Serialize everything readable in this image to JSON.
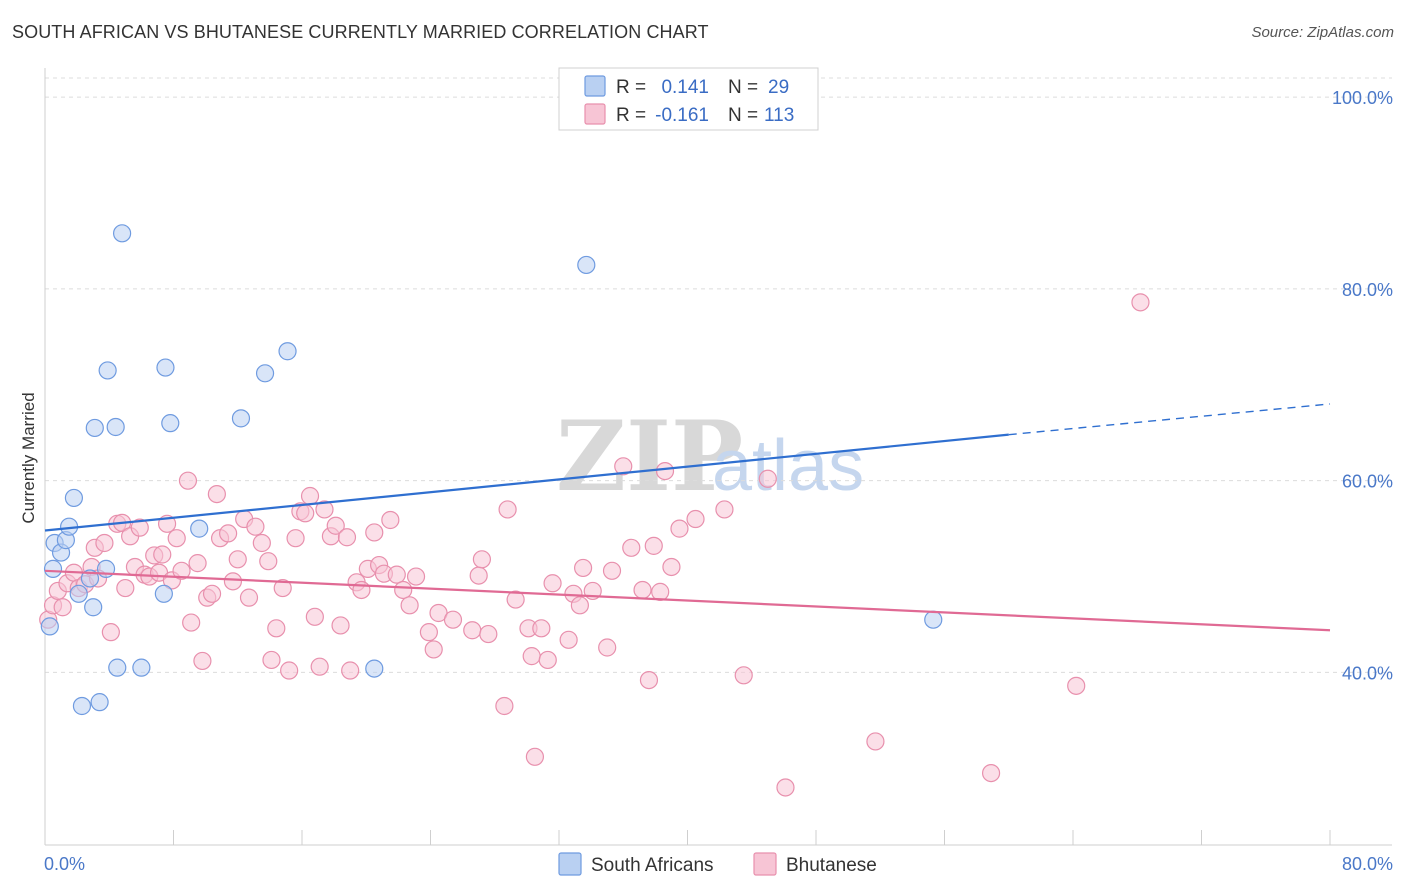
{
  "header": {
    "title": "SOUTH AFRICAN VS BHUTANESE CURRENTLY MARRIED CORRELATION CHART",
    "source": "Source: ZipAtlas.com"
  },
  "watermark": {
    "zip": "ZIP",
    "atlas": "atlas"
  },
  "colors": {
    "blue_fill": "#b9d0f2",
    "blue_stroke": "#6f9be0",
    "blue_line": "#2f6fd0",
    "pink_fill": "#f7c5d5",
    "pink_stroke": "#e890ad",
    "pink_line": "#e06a94",
    "grid": "#dcdcdc",
    "axis_text": "#4a78c8"
  },
  "legend": {
    "rows": [
      {
        "r_label": "R =",
        "r_value": "0.141",
        "n_label": "N =",
        "n_value": "29"
      },
      {
        "r_label": "R =",
        "r_value": "-0.161",
        "n_label": "N =",
        "n_value": "113"
      }
    ]
  },
  "bottom_legend": {
    "series_a": "South Africans",
    "series_b": "Bhutanese"
  },
  "chart_data": {
    "type": "scatter",
    "title": "SOUTH AFRICAN VS BHUTANESE CURRENTLY MARRIED CORRELATION CHART",
    "xlabel": "",
    "ylabel": "Currently Married",
    "xlim": [
      0,
      80
    ],
    "ylim": [
      22,
      102
    ],
    "x_tick_labels": [
      {
        "value": 0,
        "label": "0.0%"
      },
      {
        "value": 80,
        "label": "80.0%"
      }
    ],
    "y_tick_labels": [
      {
        "value": 100,
        "label": "100.0%"
      },
      {
        "value": 80,
        "label": "80.0%"
      },
      {
        "value": 60,
        "label": "60.0%"
      },
      {
        "value": 40,
        "label": "40.0%"
      }
    ],
    "y_grid": [
      100,
      80,
      60,
      40
    ],
    "x_minor_ticks": [
      8,
      16,
      24,
      32,
      40,
      48,
      56,
      64,
      72,
      80
    ],
    "series": [
      {
        "name": "South Africans",
        "r": 0.141,
        "n": 29,
        "trend": {
          "x0": 0,
          "y0": 54.8,
          "x1": 60,
          "y1": 64.8,
          "dash_x1": 80,
          "dash_y1": 68.0
        },
        "points": [
          [
            0.3,
            44.8
          ],
          [
            0.5,
            50.8
          ],
          [
            0.6,
            53.5
          ],
          [
            1.0,
            52.5
          ],
          [
            1.3,
            53.8
          ],
          [
            1.5,
            55.2
          ],
          [
            1.8,
            58.2
          ],
          [
            2.1,
            48.2
          ],
          [
            2.3,
            36.5
          ],
          [
            2.8,
            49.8
          ],
          [
            3.0,
            46.8
          ],
          [
            3.1,
            65.5
          ],
          [
            3.4,
            36.9
          ],
          [
            3.8,
            50.8
          ],
          [
            3.9,
            71.5
          ],
          [
            4.4,
            65.6
          ],
          [
            4.5,
            40.5
          ],
          [
            4.8,
            85.8
          ],
          [
            6.0,
            40.5
          ],
          [
            7.4,
            48.2
          ],
          [
            7.5,
            71.8
          ],
          [
            7.8,
            66.0
          ],
          [
            9.6,
            55.0
          ],
          [
            12.2,
            66.5
          ],
          [
            13.7,
            71.2
          ],
          [
            15.1,
            73.5
          ],
          [
            20.5,
            40.4
          ],
          [
            33.7,
            82.5
          ],
          [
            55.3,
            45.5
          ]
        ]
      },
      {
        "name": "Bhutanese",
        "r": -0.161,
        "n": 113,
        "trend": {
          "x0": 0,
          "y0": 50.6,
          "x1": 80,
          "y1": 44.4
        },
        "points": [
          [
            0.2,
            45.5
          ],
          [
            0.5,
            47.0
          ],
          [
            0.8,
            48.5
          ],
          [
            1.1,
            46.8
          ],
          [
            1.4,
            49.3
          ],
          [
            1.8,
            50.4
          ],
          [
            2.1,
            48.8
          ],
          [
            2.5,
            49.2
          ],
          [
            2.9,
            51.0
          ],
          [
            3.1,
            53.0
          ],
          [
            3.3,
            49.8
          ],
          [
            3.7,
            53.5
          ],
          [
            4.1,
            44.2
          ],
          [
            4.5,
            55.5
          ],
          [
            4.8,
            55.6
          ],
          [
            5.0,
            48.8
          ],
          [
            5.3,
            54.2
          ],
          [
            5.6,
            51.0
          ],
          [
            5.9,
            55.1
          ],
          [
            6.2,
            50.2
          ],
          [
            6.5,
            50.0
          ],
          [
            6.8,
            52.2
          ],
          [
            7.1,
            50.4
          ],
          [
            7.3,
            52.3
          ],
          [
            7.6,
            55.5
          ],
          [
            7.9,
            49.6
          ],
          [
            8.2,
            54.0
          ],
          [
            8.5,
            50.6
          ],
          [
            8.9,
            60.0
          ],
          [
            9.1,
            45.2
          ],
          [
            9.5,
            51.4
          ],
          [
            9.8,
            41.2
          ],
          [
            10.1,
            47.8
          ],
          [
            10.4,
            48.2
          ],
          [
            10.7,
            58.6
          ],
          [
            10.9,
            54.0
          ],
          [
            11.4,
            54.5
          ],
          [
            11.7,
            49.5
          ],
          [
            12.0,
            51.8
          ],
          [
            12.4,
            56.0
          ],
          [
            12.7,
            47.8
          ],
          [
            13.1,
            55.2
          ],
          [
            13.5,
            53.5
          ],
          [
            13.9,
            51.6
          ],
          [
            14.1,
            41.3
          ],
          [
            14.4,
            44.6
          ],
          [
            14.8,
            48.8
          ],
          [
            15.2,
            40.2
          ],
          [
            15.6,
            54.0
          ],
          [
            15.9,
            56.8
          ],
          [
            16.2,
            56.6
          ],
          [
            16.5,
            58.4
          ],
          [
            16.8,
            45.8
          ],
          [
            17.1,
            40.6
          ],
          [
            17.4,
            57.0
          ],
          [
            17.8,
            54.2
          ],
          [
            18.1,
            55.3
          ],
          [
            18.4,
            44.9
          ],
          [
            18.8,
            54.1
          ],
          [
            19.0,
            40.2
          ],
          [
            19.4,
            49.4
          ],
          [
            19.7,
            48.6
          ],
          [
            20.1,
            50.8
          ],
          [
            20.5,
            54.6
          ],
          [
            20.8,
            51.2
          ],
          [
            21.1,
            50.3
          ],
          [
            21.5,
            55.9
          ],
          [
            21.9,
            50.2
          ],
          [
            22.3,
            48.6
          ],
          [
            22.7,
            47.0
          ],
          [
            23.1,
            50.0
          ],
          [
            23.9,
            44.2
          ],
          [
            24.2,
            42.4
          ],
          [
            24.5,
            46.2
          ],
          [
            25.4,
            45.5
          ],
          [
            26.6,
            44.4
          ],
          [
            27.0,
            50.1
          ],
          [
            27.2,
            51.8
          ],
          [
            27.6,
            44.0
          ],
          [
            28.6,
            36.5
          ],
          [
            28.8,
            57.0
          ],
          [
            29.3,
            47.6
          ],
          [
            30.1,
            44.6
          ],
          [
            30.3,
            41.7
          ],
          [
            30.5,
            31.2
          ],
          [
            30.9,
            44.6
          ],
          [
            31.3,
            41.3
          ],
          [
            31.6,
            49.3
          ],
          [
            32.6,
            43.4
          ],
          [
            32.9,
            48.2
          ],
          [
            33.3,
            47.0
          ],
          [
            33.5,
            50.9
          ],
          [
            34.1,
            48.5
          ],
          [
            35.0,
            42.6
          ],
          [
            35.3,
            50.6
          ],
          [
            36.0,
            61.5
          ],
          [
            36.5,
            53.0
          ],
          [
            37.2,
            48.6
          ],
          [
            37.6,
            39.2
          ],
          [
            37.9,
            53.2
          ],
          [
            38.3,
            48.4
          ],
          [
            38.6,
            61.0
          ],
          [
            39.0,
            51.0
          ],
          [
            39.5,
            55.0
          ],
          [
            40.5,
            56.0
          ],
          [
            42.3,
            57.0
          ],
          [
            43.5,
            39.7
          ],
          [
            45.0,
            60.2
          ],
          [
            46.1,
            28.0
          ],
          [
            51.7,
            32.8
          ],
          [
            58.9,
            29.5
          ],
          [
            64.2,
            38.6
          ],
          [
            68.2,
            78.6
          ]
        ]
      }
    ]
  }
}
